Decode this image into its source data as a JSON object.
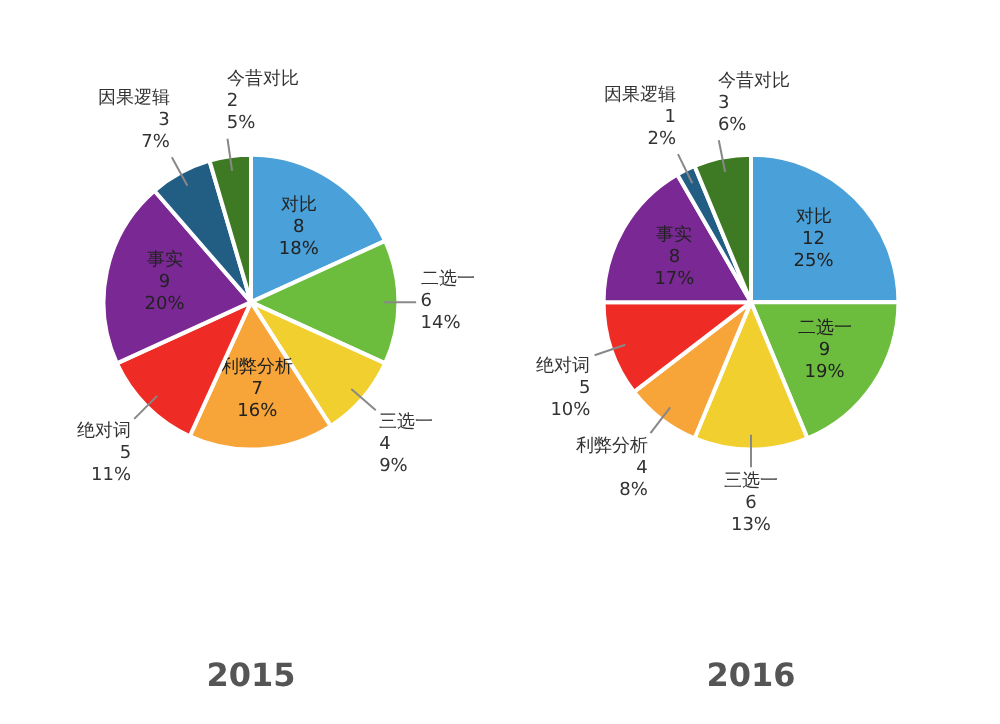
{
  "chart_data": [
    {
      "type": "pie",
      "title": "2015",
      "categories": [
        "对比",
        "二选一",
        "三选一",
        "利弊分析",
        "绝对词",
        "事实",
        "因果逻辑",
        "今昔对比"
      ],
      "values": [
        8,
        6,
        4,
        7,
        5,
        9,
        3,
        2
      ],
      "colors": [
        "#4aa0d8",
        "#6cbd3e",
        "#f0cf2e",
        "#f7a438",
        "#ee2c25",
        "#7a2894",
        "#225d84",
        "#3e7a23"
      ],
      "value_labels": [
        "8\n18%",
        "6\n14%",
        "4\n9%",
        "7\n16%",
        "5\n11%",
        "9\n20%",
        "3\n7%",
        "2\n5%"
      ]
    },
    {
      "type": "pie",
      "title": "2016",
      "categories": [
        "对比",
        "二选一",
        "三选一",
        "利弊分析",
        "绝对词",
        "事实",
        "因果逻辑",
        "今昔对比"
      ],
      "values": [
        12,
        9,
        6,
        4,
        5,
        8,
        1,
        3
      ],
      "colors": [
        "#4aa0d8",
        "#6cbd3e",
        "#f0cf2e",
        "#f7a438",
        "#ee2c25",
        "#7a2894",
        "#225d84",
        "#3e7a23"
      ],
      "value_labels": [
        "12\n25%",
        "9\n19%",
        "6\n13%",
        "4\n8%",
        "5\n10%",
        "8\n17%",
        "1\n2%",
        "3\n6%"
      ]
    }
  ]
}
